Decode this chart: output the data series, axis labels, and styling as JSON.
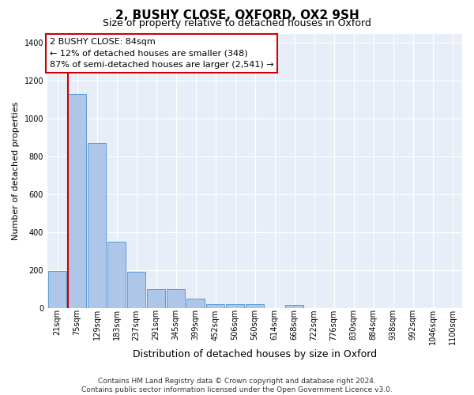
{
  "title": "2, BUSHY CLOSE, OXFORD, OX2 9SH",
  "subtitle": "Size of property relative to detached houses in Oxford",
  "xlabel": "Distribution of detached houses by size in Oxford",
  "ylabel": "Number of detached properties",
  "categories": [
    "21sqm",
    "75sqm",
    "129sqm",
    "183sqm",
    "237sqm",
    "291sqm",
    "345sqm",
    "399sqm",
    "452sqm",
    "506sqm",
    "560sqm",
    "614sqm",
    "668sqm",
    "722sqm",
    "776sqm",
    "830sqm",
    "884sqm",
    "938sqm",
    "992sqm",
    "1046sqm",
    "1100sqm"
  ],
  "bar_heights": [
    195,
    1130,
    870,
    350,
    190,
    100,
    100,
    50,
    22,
    18,
    18,
    0,
    15,
    0,
    0,
    0,
    0,
    0,
    0,
    0,
    0
  ],
  "bar_color": "#aec6e8",
  "bar_edge_color": "#5b9bd5",
  "highlight_color": "#cc0000",
  "annotation_box_text": "2 BUSHY CLOSE: 84sqm\n← 12% of detached houses are smaller (348)\n87% of semi-detached houses are larger (2,541) →",
  "ylim": [
    0,
    1450
  ],
  "yticks": [
    0,
    200,
    400,
    600,
    800,
    1000,
    1200,
    1400
  ],
  "footnote": "Contains HM Land Registry data © Crown copyright and database right 2024.\nContains public sector information licensed under the Open Government Licence v3.0.",
  "background_color": "#e8eef7",
  "grid_color": "#ffffff",
  "title_fontsize": 11,
  "subtitle_fontsize": 9,
  "axis_fontsize": 8,
  "tick_fontsize": 7,
  "footnote_fontsize": 6.5,
  "anno_fontsize": 8
}
